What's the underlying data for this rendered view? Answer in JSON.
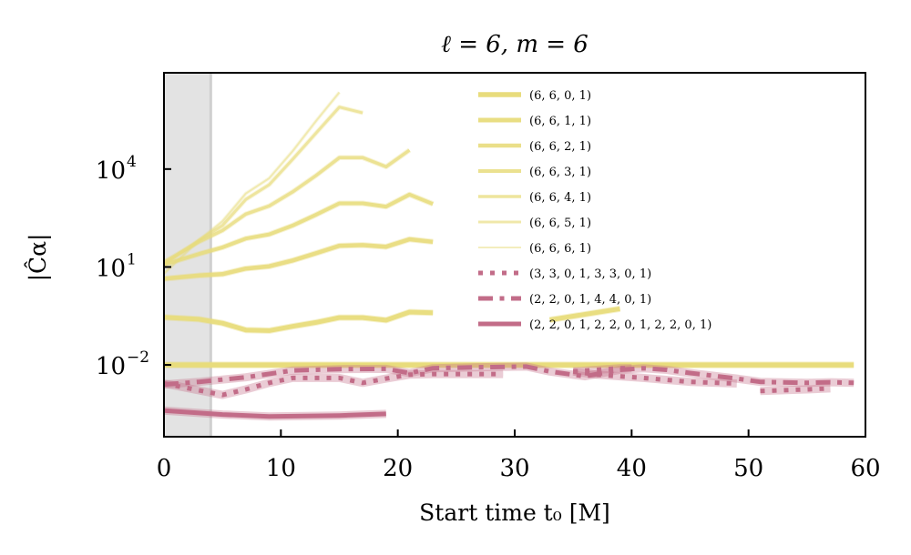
{
  "chart_data": {
    "type": "line",
    "title": "ℓ = 6, m = 6",
    "xlabel": "Start time t₀ [M]",
    "ylabel": "|Ĉα|",
    "xlim": [
      0,
      60
    ],
    "ylim_log10": [
      -4.2,
      6.95
    ],
    "yscale": "log",
    "x_ticks": [
      0,
      10,
      20,
      30,
      40,
      50,
      60
    ],
    "x_tick_labels": [
      "0",
      "10",
      "20",
      "30",
      "40",
      "50",
      "60"
    ],
    "y_ticks_log10": [
      4,
      1,
      -2
    ],
    "y_tick_labels": [
      {
        "base": "10",
        "exp": "4"
      },
      {
        "base": "10",
        "exp": "1"
      },
      {
        "base": "10",
        "exp": "−2"
      }
    ],
    "shaded_region": {
      "x_start": 0,
      "x_end": 4,
      "color": "#e3e3e3"
    },
    "grid": false,
    "legend_position": "upper-right",
    "series": [
      {
        "name": "(6, 6, 0, 1)",
        "color": "#e8dc7c",
        "style": "solid",
        "width": 5.5,
        "opacity": 1.0,
        "segments": [
          [
            [
              0,
              -2.0
            ],
            [
              59,
              -2.0
            ]
          ]
        ]
      },
      {
        "name": "(6, 6, 1, 1)",
        "color": "#e8dc7c",
        "style": "solid",
        "width": 5,
        "opacity": 0.95,
        "segments": [
          [
            [
              0,
              -0.54
            ],
            [
              3,
              -0.6
            ],
            [
              5,
              -0.72
            ],
            [
              7,
              -0.93
            ],
            [
              9,
              -0.95
            ],
            [
              11,
              -0.82
            ],
            [
              13,
              -0.7
            ],
            [
              15,
              -0.55
            ],
            [
              17,
              -0.55
            ],
            [
              19,
              -0.63
            ],
            [
              21,
              -0.38
            ],
            [
              23,
              -0.4
            ]
          ],
          [
            [
              33,
              -0.62
            ],
            [
              39,
              -0.28
            ]
          ]
        ]
      },
      {
        "name": "(6, 6, 2, 1)",
        "color": "#e8dc7c",
        "style": "solid",
        "width": 4.5,
        "opacity": 0.9,
        "segments": [
          [
            [
              0,
              0.64
            ],
            [
              3,
              0.74
            ],
            [
              5,
              0.78
            ],
            [
              7,
              0.95
            ],
            [
              9,
              1.02
            ],
            [
              11,
              1.2
            ],
            [
              13,
              1.42
            ],
            [
              15,
              1.65
            ],
            [
              17,
              1.67
            ],
            [
              19,
              1.62
            ],
            [
              21,
              1.85
            ],
            [
              23,
              1.77
            ]
          ]
        ]
      },
      {
        "name": "(6, 6, 3, 1)",
        "color": "#e8dc7c",
        "style": "solid",
        "width": 4,
        "opacity": 0.85,
        "segments": [
          [
            [
              0,
              1.07
            ],
            [
              3,
              1.4
            ],
            [
              5,
              1.6
            ],
            [
              7,
              1.87
            ],
            [
              9,
              2.0
            ],
            [
              11,
              2.27
            ],
            [
              13,
              2.6
            ],
            [
              15,
              2.95
            ],
            [
              17,
              2.95
            ],
            [
              19,
              2.85
            ],
            [
              21,
              3.22
            ],
            [
              23,
              2.93
            ]
          ]
        ]
      },
      {
        "name": "(6, 6, 4, 1)",
        "color": "#e8dc7c",
        "style": "solid",
        "width": 3.5,
        "opacity": 0.75,
        "segments": [
          [
            [
              0,
              1.15
            ],
            [
              3,
              1.77
            ],
            [
              5,
              2.12
            ],
            [
              7,
              2.62
            ],
            [
              9,
              2.87
            ],
            [
              11,
              3.3
            ],
            [
              13,
              3.8
            ],
            [
              15,
              4.35
            ],
            [
              17,
              4.35
            ],
            [
              19,
              4.07
            ],
            [
              21,
              4.58
            ]
          ]
        ]
      },
      {
        "name": "(6, 6, 5, 1)",
        "color": "#e8dc7c",
        "style": "solid",
        "width": 3,
        "opacity": 0.65,
        "segments": [
          [
            [
              0,
              1.08
            ],
            [
              3,
              1.82
            ],
            [
              5,
              2.27
            ],
            [
              7,
              3.07
            ],
            [
              9,
              3.52
            ],
            [
              11,
              4.3
            ],
            [
              13,
              5.1
            ],
            [
              15,
              5.9
            ],
            [
              17,
              5.72
            ]
          ]
        ]
      },
      {
        "name": "(6, 6, 6, 1)",
        "color": "#e8dc7c",
        "style": "solid",
        "width": 2,
        "opacity": 0.5,
        "segments": [
          [
            [
              0,
              0.8
            ],
            [
              3,
              1.82
            ],
            [
              5,
              2.4
            ],
            [
              7,
              3.25
            ],
            [
              9,
              3.72
            ],
            [
              11,
              4.55
            ],
            [
              13,
              5.47
            ],
            [
              15,
              6.35
            ]
          ]
        ]
      },
      {
        "name": "(3, 3, 0, 1, 3, 3, 0, 1)",
        "color": "#c26c88",
        "style": "dotted",
        "width": 5,
        "opacity": 1.0,
        "band": true,
        "segments": [
          [
            [
              0,
              -2.57
            ],
            [
              5,
              -2.92
            ],
            [
              7,
              -2.75
            ],
            [
              9,
              -2.55
            ],
            [
              11,
              -2.4
            ],
            [
              15,
              -2.4
            ],
            [
              17,
              -2.55
            ],
            [
              19,
              -2.42
            ],
            [
              21,
              -2.3
            ],
            [
              23,
              -2.28
            ],
            [
              27,
              -2.28
            ],
            [
              29,
              -2.28
            ]
          ],
          [
            [
              35,
              -2.2
            ],
            [
              37,
              -2.15
            ],
            [
              39,
              -2.1
            ],
            [
              40,
              -2.1
            ]
          ],
          [
            [
              35,
              -2.2
            ],
            [
              37,
              -2.3
            ],
            [
              41,
              -2.4
            ],
            [
              45,
              -2.52
            ],
            [
              49,
              -2.57
            ]
          ],
          [
            [
              51,
              -2.8
            ],
            [
              55,
              -2.75
            ],
            [
              57,
              -2.72
            ]
          ]
        ]
      },
      {
        "name": "(2, 2, 0, 1, 4, 4, 0, 1)",
        "color": "#c26c88",
        "style": "dashdot",
        "width": 5,
        "opacity": 1.0,
        "band": true,
        "segments": [
          [
            [
              0,
              -2.6
            ],
            [
              3,
              -2.52
            ],
            [
              7,
              -2.38
            ],
            [
              11,
              -2.17
            ],
            [
              15,
              -2.13
            ],
            [
              19,
              -2.12
            ],
            [
              21,
              -2.25
            ],
            [
              23,
              -2.1
            ],
            [
              27,
              -2.07
            ],
            [
              31,
              -2.05
            ],
            [
              33,
              -2.2
            ],
            [
              36,
              -2.35
            ],
            [
              39,
              -2.15
            ],
            [
              41,
              -2.1
            ],
            [
              43,
              -2.15
            ],
            [
              45,
              -2.25
            ],
            [
              49,
              -2.42
            ],
            [
              51,
              -2.52
            ],
            [
              55,
              -2.55
            ],
            [
              57,
              -2.53
            ],
            [
              59,
              -2.55
            ]
          ]
        ]
      },
      {
        "name": "(2, 2, 0, 1, 2, 2, 0, 1, 2, 2, 0, 1)",
        "color": "#c26c88",
        "style": "solid",
        "width": 5,
        "opacity": 1.0,
        "band": true,
        "segments": [
          [
            [
              0,
              -3.4
            ],
            [
              5,
              -3.52
            ],
            [
              9,
              -3.58
            ],
            [
              15,
              -3.55
            ],
            [
              19,
              -3.5
            ]
          ]
        ]
      }
    ]
  },
  "legend": {
    "items": [
      {
        "label": "(6, 6, 0, 1)"
      },
      {
        "label": "(6, 6, 1, 1)"
      },
      {
        "label": "(6, 6, 2, 1)"
      },
      {
        "label": "(6, 6, 3, 1)"
      },
      {
        "label": "(6, 6, 4, 1)"
      },
      {
        "label": "(6, 6, 5, 1)"
      },
      {
        "label": "(6, 6, 6, 1)"
      },
      {
        "label": "(3, 3, 0, 1, 3, 3, 0, 1)"
      },
      {
        "label": "(2, 2, 0, 1, 4, 4, 0, 1)"
      },
      {
        "label": "(2, 2, 0, 1, 2, 2, 0, 1, 2, 2, 0, 1)"
      }
    ]
  }
}
